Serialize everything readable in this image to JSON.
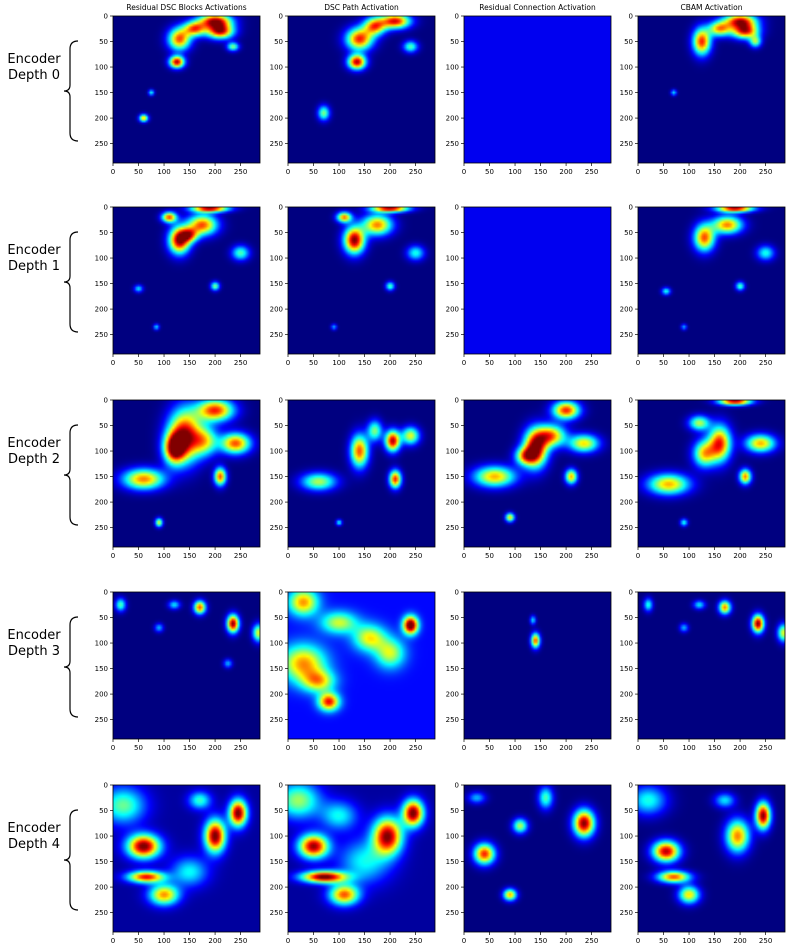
{
  "chart_data": {
    "type": "heatmap",
    "colormap": "jet",
    "columns": [
      "Residual DSC Blocks Activations",
      "DSC Path Activation",
      "Residual Connection Activation",
      "CBAM Activation"
    ],
    "rows": [
      {
        "label": [
          "Encoder",
          "Depth 0"
        ]
      },
      {
        "label": [
          "Encoder",
          "Depth 1"
        ]
      },
      {
        "label": [
          "Encoder",
          "Depth 2"
        ]
      },
      {
        "label": [
          "Encoder",
          "Depth 3"
        ]
      },
      {
        "label": [
          "Encoder",
          "Depth 4"
        ]
      }
    ],
    "xlim": [
      0,
      288
    ],
    "ylim": [
      288,
      0
    ],
    "x_ticks": [
      "0",
      "50",
      "100",
      "150",
      "200",
      "250"
    ],
    "y_ticks": [
      "0",
      "50",
      "100",
      "150",
      "200",
      "250"
    ],
    "x_tick_values": [
      0,
      50,
      100,
      150,
      200,
      250
    ],
    "y_tick_values": [
      0,
      50,
      100,
      150,
      200,
      250
    ],
    "panels": [
      [
        {
          "bg": 0,
          "hotspots": [
            [
              200,
              10,
              22,
              10,
              0.95
            ],
            [
              210,
              30,
              18,
              10,
              0.9
            ],
            [
              130,
              45,
              15,
              15,
              0.8
            ],
            [
              125,
              90,
              10,
              8,
              0.95
            ],
            [
              160,
              25,
              15,
              10,
              0.75
            ],
            [
              60,
              200,
              6,
              5,
              0.7
            ],
            [
              235,
              60,
              8,
              6,
              0.5
            ],
            [
              75,
              150,
              4,
              4,
              0.4
            ]
          ]
        },
        {
          "bg": 0,
          "hotspots": [
            [
              210,
              10,
              20,
              10,
              0.9
            ],
            [
              140,
              45,
              18,
              15,
              0.85
            ],
            [
              135,
              90,
              12,
              10,
              0.95
            ],
            [
              170,
              20,
              15,
              12,
              0.75
            ],
            [
              70,
              190,
              8,
              10,
              0.5
            ],
            [
              240,
              60,
              10,
              8,
              0.45
            ]
          ]
        },
        {
          "bg": 0.11,
          "hotspots": []
        },
        {
          "bg": 0,
          "hotspots": [
            [
              200,
              10,
              22,
              10,
              0.9
            ],
            [
              210,
              30,
              18,
              10,
              0.85
            ],
            [
              125,
              50,
              12,
              18,
              0.85
            ],
            [
              160,
              25,
              15,
              10,
              0.7
            ],
            [
              230,
              50,
              8,
              8,
              0.5
            ],
            [
              70,
              150,
              4,
              4,
              0.35
            ]
          ]
        }
      ],
      [
        {
          "bg": 0,
          "hotspots": [
            [
              190,
              3,
              25,
              5,
              0.95
            ],
            [
              110,
              20,
              10,
              7,
              0.8
            ],
            [
              130,
              65,
              14,
              18,
              1
            ],
            [
              175,
              35,
              20,
              14,
              0.8
            ],
            [
              150,
              55,
              12,
              10,
              0.6
            ],
            [
              250,
              90,
              12,
              10,
              0.45
            ],
            [
              200,
              155,
              6,
              6,
              0.5
            ],
            [
              50,
              160,
              6,
              5,
              0.35
            ],
            [
              85,
              235,
              4,
              4,
              0.35
            ]
          ]
        },
        {
          "bg": 0,
          "hotspots": [
            [
              200,
              3,
              25,
              5,
              0.95
            ],
            [
              110,
              20,
              10,
              7,
              0.75
            ],
            [
              130,
              65,
              14,
              18,
              1
            ],
            [
              175,
              35,
              20,
              14,
              0.75
            ],
            [
              250,
              90,
              12,
              10,
              0.4
            ],
            [
              200,
              155,
              6,
              6,
              0.45
            ],
            [
              90,
              235,
              4,
              4,
              0.3
            ]
          ]
        },
        {
          "bg": 0.11,
          "hotspots": []
        },
        {
          "bg": 0,
          "hotspots": [
            [
              190,
              3,
              25,
              5,
              0.95
            ],
            [
              130,
              60,
              14,
              18,
              0.8
            ],
            [
              175,
              35,
              20,
              12,
              0.75
            ],
            [
              250,
              90,
              12,
              10,
              0.4
            ],
            [
              200,
              155,
              6,
              6,
              0.45
            ],
            [
              55,
              165,
              6,
              5,
              0.4
            ],
            [
              90,
              235,
              4,
              4,
              0.3
            ]
          ]
        }
      ],
      [
        {
          "bg": 0,
          "hotspots": [
            [
              140,
              70,
              22,
              35,
              0.95
            ],
            [
              120,
              95,
              14,
              20,
              0.85
            ],
            [
              60,
              155,
              28,
              14,
              0.75
            ],
            [
              200,
              20,
              25,
              15,
              0.85
            ],
            [
              240,
              85,
              20,
              14,
              0.8
            ],
            [
              210,
              150,
              8,
              12,
              0.8
            ],
            [
              90,
              240,
              5,
              6,
              0.6
            ],
            [
              180,
              80,
              18,
              20,
              0.55
            ]
          ]
        },
        {
          "bg": 0,
          "hotspots": [
            [
              140,
              100,
              12,
              22,
              0.8
            ],
            [
              205,
              80,
              10,
              14,
              0.95
            ],
            [
              210,
              155,
              8,
              12,
              0.85
            ],
            [
              60,
              160,
              24,
              12,
              0.55
            ],
            [
              240,
              70,
              12,
              12,
              0.6
            ],
            [
              170,
              60,
              10,
              14,
              0.5
            ],
            [
              100,
              240,
              4,
              4,
              0.4
            ]
          ]
        },
        {
          "bg": 0,
          "hotspots": [
            [
              140,
              95,
              16,
              25,
              1
            ],
            [
              200,
              20,
              18,
              12,
              0.85
            ],
            [
              170,
              70,
              20,
              15,
              0.75
            ],
            [
              60,
              150,
              28,
              14,
              0.7
            ],
            [
              235,
              85,
              20,
              12,
              0.65
            ],
            [
              210,
              150,
              8,
              10,
              0.7
            ],
            [
              90,
              230,
              6,
              6,
              0.65
            ],
            [
              120,
              110,
              14,
              12,
              0.6
            ]
          ]
        },
        {
          "bg": 0,
          "hotspots": [
            [
              190,
              3,
              22,
              5,
              0.95
            ],
            [
              160,
              85,
              15,
              24,
              0.85
            ],
            [
              130,
              105,
              15,
              18,
              0.65
            ],
            [
              60,
              165,
              28,
              14,
              0.7
            ],
            [
              240,
              85,
              20,
              12,
              0.7
            ],
            [
              210,
              150,
              8,
              10,
              0.75
            ],
            [
              120,
              45,
              14,
              10,
              0.55
            ],
            [
              90,
              240,
              5,
              5,
              0.4
            ]
          ]
        }
      ],
      [
        {
          "bg": 0,
          "hotspots": [
            [
              235,
              62,
              8,
              12,
              1
            ],
            [
              170,
              30,
              8,
              9,
              0.8
            ],
            [
              15,
              25,
              7,
              9,
              0.45
            ],
            [
              120,
              25,
              8,
              6,
              0.35
            ],
            [
              285,
              80,
              8,
              12,
              0.6
            ],
            [
              90,
              70,
              6,
              6,
              0.3
            ],
            [
              225,
              140,
              6,
              6,
              0.3
            ]
          ]
        },
        {
          "bg": 0.13,
          "hotspots": [
            [
              240,
              65,
              10,
              12,
              1
            ],
            [
              30,
              20,
              20,
              18,
              0.6
            ],
            [
              30,
              140,
              30,
              25,
              0.6
            ],
            [
              80,
              215,
              14,
              12,
              0.75
            ],
            [
              60,
              175,
              22,
              15,
              0.5
            ],
            [
              160,
              90,
              22,
              18,
              0.5
            ],
            [
              200,
              120,
              20,
              20,
              0.45
            ],
            [
              100,
              60,
              25,
              15,
              0.45
            ]
          ]
        },
        {
          "bg": 0,
          "hotspots": [
            [
              140,
              95,
              6,
              10,
              0.8
            ],
            [
              135,
              55,
              4,
              6,
              0.35
            ]
          ]
        },
        {
          "bg": 0,
          "hotspots": [
            [
              235,
              62,
              8,
              12,
              1
            ],
            [
              170,
              30,
              8,
              9,
              0.75
            ],
            [
              285,
              80,
              8,
              12,
              0.6
            ],
            [
              120,
              25,
              8,
              6,
              0.35
            ],
            [
              20,
              25,
              6,
              9,
              0.4
            ],
            [
              90,
              70,
              6,
              6,
              0.3
            ]
          ]
        }
      ],
      [
        {
          "bg": 0.03,
          "hotspots": [
            [
              60,
              120,
              22,
              16,
              1
            ],
            [
              200,
              100,
              14,
              22,
              1
            ],
            [
              245,
              55,
              12,
              18,
              1
            ],
            [
              65,
              180,
              25,
              8,
              0.85
            ],
            [
              100,
              215,
              20,
              14,
              0.7
            ],
            [
              20,
              40,
              30,
              25,
              0.45
            ],
            [
              170,
              30,
              15,
              12,
              0.4
            ],
            [
              150,
              170,
              25,
              20,
              0.35
            ]
          ]
        },
        {
          "bg": 0.03,
          "hotspots": [
            [
              50,
              120,
              20,
              16,
              0.95
            ],
            [
              195,
              100,
              20,
              25,
              0.95
            ],
            [
              245,
              55,
              14,
              18,
              1
            ],
            [
              70,
              180,
              30,
              8,
              1
            ],
            [
              110,
              215,
              20,
              14,
              0.75
            ],
            [
              20,
              30,
              30,
              25,
              0.5
            ],
            [
              150,
              150,
              35,
              30,
              0.35
            ],
            [
              100,
              60,
              25,
              20,
              0.35
            ]
          ]
        },
        {
          "bg": 0,
          "hotspots": [
            [
              235,
              75,
              14,
              18,
              1
            ],
            [
              40,
              135,
              14,
              14,
              0.85
            ],
            [
              110,
              80,
              10,
              10,
              0.55
            ],
            [
              160,
              25,
              10,
              15,
              0.45
            ],
            [
              90,
              215,
              9,
              8,
              0.7
            ],
            [
              25,
              25,
              12,
              8,
              0.3
            ]
          ]
        },
        {
          "bg": 0,
          "hotspots": [
            [
              245,
              60,
              10,
              18,
              1
            ],
            [
              55,
              130,
              18,
              14,
              0.95
            ],
            [
              195,
              100,
              16,
              22,
              0.75
            ],
            [
              70,
              180,
              22,
              8,
              0.8
            ],
            [
              100,
              215,
              14,
              12,
              0.65
            ],
            [
              20,
              30,
              25,
              20,
              0.4
            ],
            [
              170,
              30,
              14,
              10,
              0.35
            ]
          ]
        }
      ]
    ]
  }
}
